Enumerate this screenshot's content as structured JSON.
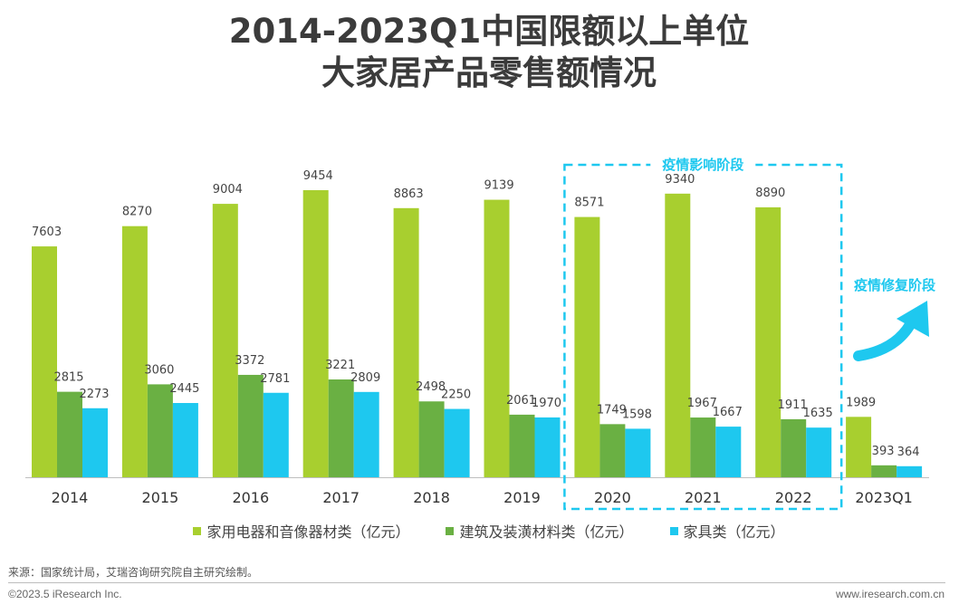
{
  "title": {
    "line1": "2014-2023Q1中国限额以上单位",
    "line2": "大家居产品零售额情况"
  },
  "chart_data": {
    "type": "bar",
    "categories": [
      "2014",
      "2015",
      "2016",
      "2017",
      "2018",
      "2019",
      "2020",
      "2021",
      "2022",
      "2023Q1"
    ],
    "series": [
      {
        "name": "家用电器和音像器材类（亿元）",
        "color": "#a8cf2f",
        "values": [
          7603,
          8270,
          9004,
          9454,
          8863,
          9139,
          8571,
          9340,
          8890,
          1989
        ]
      },
      {
        "name": "建筑及装潢材料类（亿元）",
        "color": "#6ab043",
        "values": [
          2815,
          3060,
          3372,
          3221,
          2498,
          2061,
          1749,
          1967,
          1911,
          393
        ]
      },
      {
        "name": "家具类（亿元）",
        "color": "#1ec8ef",
        "values": [
          2273,
          2445,
          2781,
          2809,
          2250,
          1970,
          1598,
          1667,
          1635,
          364
        ]
      }
    ],
    "ylim": [
      0,
      10000
    ],
    "grid": false,
    "legend_position": "bottom",
    "annotations": [
      {
        "text": "疫情影响阶段",
        "categories": [
          "2020",
          "2021",
          "2022"
        ],
        "style": "dashed-box",
        "color": "#1ec8ef"
      },
      {
        "text": "疫情修复阶段",
        "category": "2023Q1",
        "style": "curved-arrow",
        "color": "#1ec8ef"
      }
    ]
  },
  "footer": {
    "source": "来源：国家统计局，艾瑞咨询研究院自主研究绘制。",
    "copyright": "©2023.5 iResearch Inc.",
    "website": "www.iresearch.com.cn"
  }
}
